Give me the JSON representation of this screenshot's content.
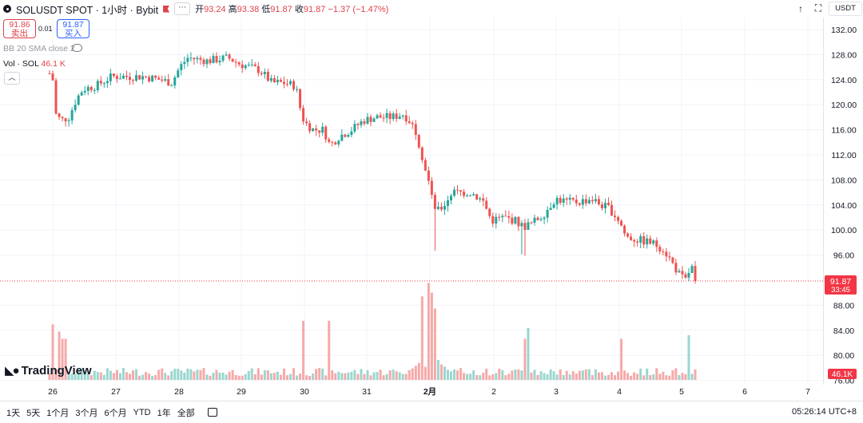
{
  "header": {
    "title": "SOLUSDT SPOT · 1小时 · Bybit",
    "more_label": "⋯",
    "ohlc": {
      "open_label": "开",
      "open_value": "93.24",
      "high_label": "高",
      "high_value": "93.38",
      "low_label": "低",
      "low_value": "91.87",
      "close_label": "收",
      "close_value": "91.87",
      "change": "−1.37 (−1.47%)"
    }
  },
  "order_buttons": {
    "sell_price": "91.86",
    "sell_label": "卖出",
    "spread": "0.01",
    "buy_price": "91.87",
    "buy_label": "买入"
  },
  "indicators": {
    "bb_label": "BB 20 SMA close 2",
    "vol_prefix": "Vol · SOL",
    "vol_value": "46.1 K"
  },
  "toolbar": {
    "currency": "USDT"
  },
  "price_axis": {
    "ticks": [
      "132.00",
      "128.00",
      "124.00",
      "120.00",
      "116.00",
      "112.00",
      "108.00",
      "104.00",
      "100.00",
      "96.00",
      "88.00",
      "84.00",
      "80.00",
      "76.00"
    ],
    "last_price": "91.87",
    "countdown": "33:45",
    "volume_label": "46.1K"
  },
  "time_axis": {
    "ticks": [
      "26",
      "27",
      "28",
      "29",
      "30",
      "31",
      "2月",
      "2",
      "3",
      "4",
      "5",
      "6",
      "7"
    ]
  },
  "bottom_bar": {
    "timeframes": [
      "1天",
      "5天",
      "1个月",
      "3个月",
      "6个月",
      "YTD",
      "1年",
      "全部"
    ],
    "time_readout": "05:26:14 UTC+8"
  },
  "logo": {
    "text": "TradingView"
  },
  "colors": {
    "up": "#26a69a",
    "down": "#ef5350",
    "up_vol": "#9bd6cf",
    "down_vol": "#f5aaa8",
    "price_line": "#f23645"
  },
  "chart_data": {
    "type": "candlestick",
    "series": [
      {
        "name": "SOLUSDT SPOT"
      }
    ],
    "interval": "1小时",
    "ylim": [
      76,
      134
    ],
    "x_labels": [
      "26",
      "27",
      "28",
      "29",
      "30",
      "31",
      "2月",
      "2",
      "3",
      "4",
      "5",
      "6",
      "7"
    ],
    "last_price": 91.87,
    "ohlc_keypoints": [
      {
        "day": "26",
        "close": 125.0
      },
      {
        "day": "26",
        "close": 117.5
      },
      {
        "day": "27",
        "close": 124.5
      },
      {
        "day": "28",
        "close": 127.5
      },
      {
        "day": "29",
        "close": 126.5
      },
      {
        "day": "30",
        "close": 116.0
      },
      {
        "day": "31",
        "close": 118.0
      },
      {
        "day": "2月",
        "close": 106.0
      },
      {
        "day": "2",
        "close": 102.0
      },
      {
        "day": "3",
        "close": 105.0
      },
      {
        "day": "4",
        "close": 100.0
      },
      {
        "day": "5",
        "close": 91.87
      }
    ],
    "volume_peak": "2月"
  }
}
